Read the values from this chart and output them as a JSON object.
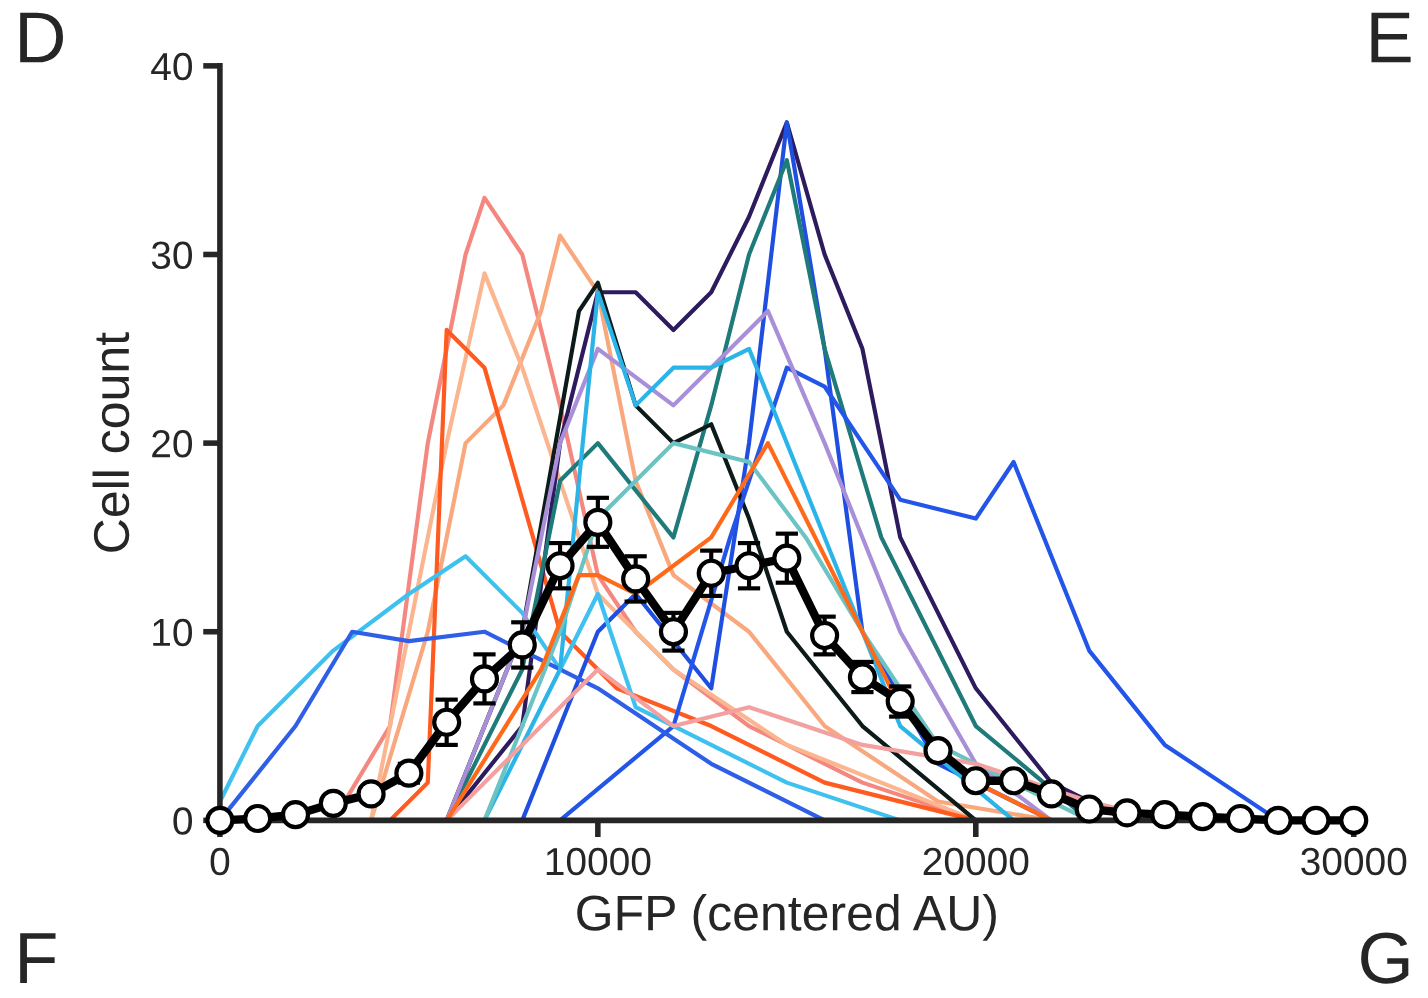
{
  "chart_data": {
    "type": "line",
    "xlabel": "GFP (centered AU)",
    "ylabel": "Cell count",
    "xlim": [
      0,
      30000
    ],
    "ylim": [
      0,
      40
    ],
    "xticks": [
      0,
      10000,
      20000,
      30000
    ],
    "yticks": [
      0,
      10,
      20,
      30,
      40
    ],
    "grid": false,
    "legend": false,
    "annotations": [
      "D",
      "E",
      "F",
      "G"
    ],
    "series": [
      {
        "color": "#f4877f",
        "x": [
          3000,
          4500,
          5500,
          6500,
          7000,
          8000,
          9000,
          10000,
          11000,
          12000,
          14000,
          17000,
          20000
        ],
        "values": [
          0,
          5,
          20,
          30,
          33,
          30,
          22,
          13,
          10,
          8,
          5,
          2,
          0
        ]
      },
      {
        "color": "#f9a87d",
        "x": [
          4000,
          5500,
          6500,
          7500,
          8500,
          9000,
          10000,
          11000,
          12000,
          14000,
          16000,
          19000,
          22000
        ],
        "values": [
          0,
          10,
          20,
          22,
          27,
          31,
          28,
          18,
          13,
          10,
          5,
          1,
          0
        ]
      },
      {
        "color": "#fbb58f",
        "x": [
          4000,
          6000,
          7000,
          8000,
          9000,
          10000,
          12000,
          15000,
          20000
        ],
        "values": [
          0,
          20,
          29,
          24,
          18,
          12,
          8,
          4,
          0
        ]
      },
      {
        "color": "#ff5a1f",
        "x": [
          4500,
          5500,
          6000,
          7000,
          8000,
          9000,
          10500,
          13000,
          16000,
          20000
        ],
        "values": [
          0,
          2,
          26,
          24,
          17,
          10,
          7,
          5,
          2,
          0
        ]
      },
      {
        "color": "#2d1b5e",
        "x": [
          6000,
          8000,
          9000,
          10000,
          11000,
          12000,
          13000,
          14000,
          15000,
          16000,
          17000,
          18000,
          20000,
          22000,
          24000
        ],
        "values": [
          0,
          5,
          20,
          28,
          28,
          26,
          28,
          32,
          37,
          30,
          25,
          15,
          7,
          2,
          0
        ]
      },
      {
        "color": "#1f4fe0",
        "x": [
          8000,
          10000,
          11000,
          13000,
          14000,
          15000,
          16000,
          17000,
          19000,
          22000
        ],
        "values": [
          0,
          10,
          12,
          7,
          20,
          37,
          25,
          10,
          3,
          0
        ]
      },
      {
        "color": "#1f7a7a",
        "x": [
          6000,
          8000,
          9000,
          10000,
          12000,
          13000,
          14000,
          15000,
          16000,
          17500,
          20000,
          23000
        ],
        "values": [
          0,
          8,
          18,
          20,
          15,
          22,
          30,
          35,
          25,
          15,
          5,
          0
        ]
      },
      {
        "color": "#0d1a1a",
        "x": [
          6000,
          8000,
          9500,
          10000,
          11000,
          12000,
          13000,
          14000,
          15000,
          17000,
          20000
        ],
        "values": [
          0,
          10,
          27,
          28.5,
          22,
          20,
          21,
          16,
          10,
          5,
          0
        ]
      },
      {
        "color": "#2355e8",
        "x": [
          9000,
          12000,
          13500,
          15000,
          16000,
          17000,
          18000,
          20000,
          21000,
          23000,
          25000,
          26500,
          28000
        ],
        "values": [
          0,
          5,
          15,
          24,
          23,
          20,
          17,
          16,
          19,
          9,
          4,
          2,
          0
        ]
      },
      {
        "color": "#3ec1ef",
        "x": [
          0,
          1000,
          3000,
          5000,
          6500,
          8000,
          9000,
          10000,
          11000,
          13000,
          15000,
          18000
        ],
        "values": [
          1,
          5,
          9,
          12,
          14,
          11,
          8,
          12,
          6,
          4,
          2,
          0
        ]
      },
      {
        "color": "#2f5fe6",
        "x": [
          0,
          2000,
          3500,
          5000,
          7000,
          9000,
          10000,
          13000,
          16000
        ],
        "values": [
          0,
          5,
          10,
          9.5,
          10,
          8,
          7,
          3,
          0
        ]
      },
      {
        "color": "#a98fd8",
        "x": [
          6000,
          8000,
          9000,
          10000,
          12000,
          14000,
          14500,
          16000,
          18000,
          20000,
          22000
        ],
        "values": [
          0,
          10,
          20,
          25,
          22,
          26,
          27,
          20,
          10,
          3,
          0
        ]
      },
      {
        "color": "#2bb4e8",
        "x": [
          7000,
          9000,
          10000,
          11000,
          12000,
          13000,
          14000,
          16000,
          18000,
          21000
        ],
        "values": [
          0,
          8,
          28,
          22,
          24,
          24,
          25,
          15,
          5,
          0
        ]
      },
      {
        "color": "#6cc3c3",
        "x": [
          7000,
          9000,
          10000,
          12000,
          14000,
          15500,
          17000,
          19000,
          23000
        ],
        "values": [
          0,
          10,
          16,
          20,
          19,
          15,
          10,
          4,
          0
        ]
      },
      {
        "color": "#f2a0a0",
        "x": [
          6000,
          9000,
          10000,
          12000,
          14000,
          17000,
          20000,
          23000,
          25000
        ],
        "values": [
          0,
          6,
          8,
          5,
          6,
          4,
          3,
          1,
          0
        ]
      },
      {
        "color": "#ff6a1a",
        "x": [
          6000,
          8500,
          9500,
          10000,
          11000,
          13000,
          14500,
          15000,
          16500,
          18000,
          20000,
          22000
        ],
        "values": [
          0,
          8,
          13,
          13,
          12,
          15,
          20,
          18,
          12,
          6,
          2,
          0
        ]
      },
      {
        "color": "#000000",
        "marker": "circle",
        "x": [
          0,
          1000,
          2000,
          3000,
          4000,
          5000,
          6000,
          7000,
          8000,
          9000,
          10000,
          11000,
          12000,
          13000,
          14000,
          15000,
          16000,
          17000,
          18000,
          19000,
          20000,
          21000,
          22000,
          23000,
          24000,
          25000,
          26000,
          27000,
          28000,
          29000,
          30000
        ],
        "values": [
          0,
          0.1,
          0.3,
          0.9,
          1.4,
          2.5,
          5.2,
          7.5,
          9.3,
          13.5,
          15.8,
          12.8,
          10,
          13.1,
          13.5,
          13.9,
          9.8,
          7.6,
          6.3,
          3.7,
          2.1,
          2.1,
          1.4,
          0.6,
          0.4,
          0.3,
          0.2,
          0.1,
          0,
          0,
          0
        ],
        "errors": [
          null,
          null,
          null,
          null,
          null,
          0.5,
          1.2,
          1.3,
          1.2,
          1.2,
          1.3,
          1.2,
          1.0,
          1.2,
          1.2,
          1.3,
          1.0,
          0.8,
          0.8,
          null,
          null,
          0.4,
          null,
          null,
          null,
          null,
          null,
          null,
          null,
          null,
          null
        ]
      }
    ]
  }
}
